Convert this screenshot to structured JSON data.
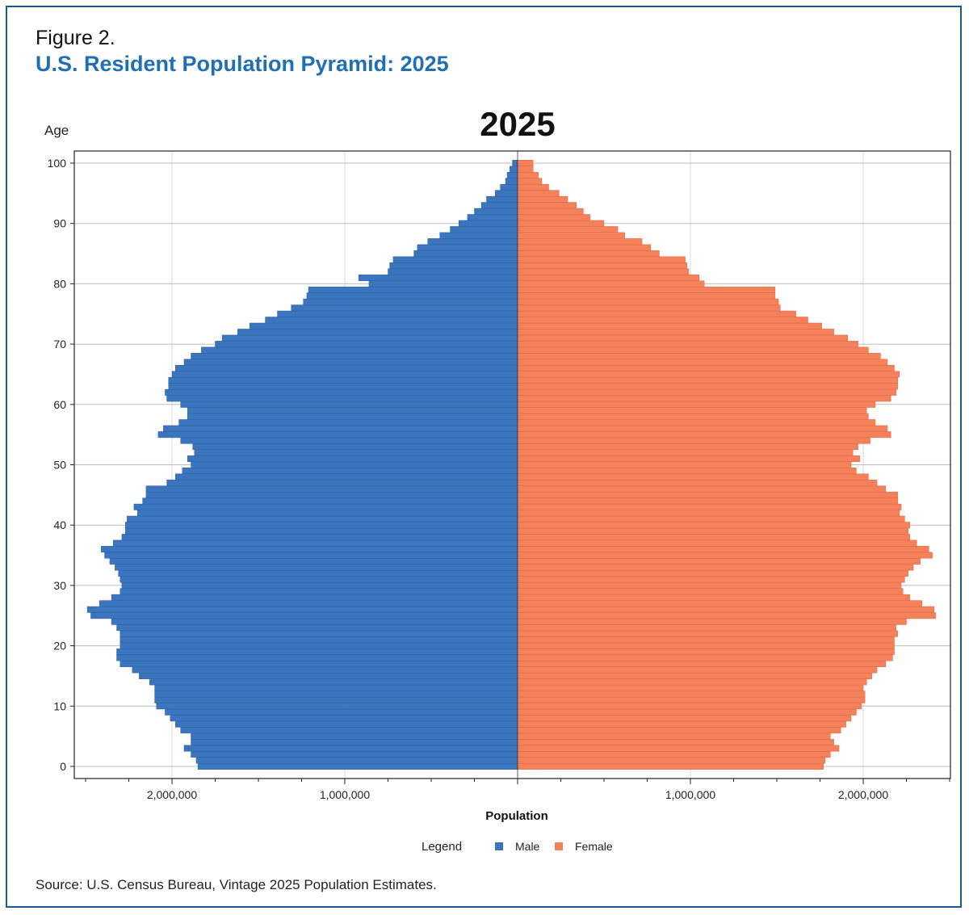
{
  "figure": {
    "label": "Figure 2.",
    "title": "U.S. Resident Population Pyramid: 2025",
    "source": "Source: U.S. Census Bureau, Vintage 2025 Population Estimates."
  },
  "colors": {
    "male": "#3a75bd",
    "female": "#f4815a",
    "frame": "#1f5a8e",
    "title": "#1f6fb2"
  },
  "chart_data": {
    "type": "bar",
    "orientation": "horizontal-pyramid",
    "title": "2025",
    "ylabel": "Age",
    "xlabel": "Population",
    "legend_title": "Legend",
    "legend_placement": "bottom-center",
    "grid": true,
    "xlim": [
      -2500000,
      2500000
    ],
    "ylim": [
      0,
      100
    ],
    "x_ticks": [
      -2000000,
      -1000000,
      1000000,
      2000000
    ],
    "x_tick_labels": [
      "2,000,000",
      "1,000,000",
      "1,000,000",
      "2,000,000"
    ],
    "y_ticks": [
      0,
      10,
      20,
      30,
      40,
      50,
      60,
      70,
      80,
      90,
      100
    ],
    "y_tick_labels": [
      "0",
      "10",
      "20",
      "30",
      "40",
      "50",
      "60",
      "70",
      "80",
      "90",
      "100"
    ],
    "ages": [
      0,
      1,
      2,
      3,
      4,
      5,
      6,
      7,
      8,
      9,
      10,
      11,
      12,
      13,
      14,
      15,
      16,
      17,
      18,
      19,
      20,
      21,
      22,
      23,
      24,
      25,
      26,
      27,
      28,
      29,
      30,
      31,
      32,
      33,
      34,
      35,
      36,
      37,
      38,
      39,
      40,
      41,
      42,
      43,
      44,
      45,
      46,
      47,
      48,
      49,
      50,
      51,
      52,
      53,
      54,
      55,
      56,
      57,
      58,
      59,
      60,
      61,
      62,
      63,
      64,
      65,
      66,
      67,
      68,
      69,
      70,
      71,
      72,
      73,
      74,
      75,
      76,
      77,
      78,
      79,
      80,
      81,
      82,
      83,
      84,
      85,
      86,
      87,
      88,
      89,
      90,
      91,
      92,
      93,
      94,
      95,
      96,
      97,
      98,
      99,
      100
    ],
    "series": [
      {
        "name": "Male",
        "color": "#3a75bd",
        "values": [
          1850000,
          1860000,
          1890000,
          1930000,
          1890000,
          1890000,
          1950000,
          1980000,
          2010000,
          2040000,
          2090000,
          2100000,
          2100000,
          2100000,
          2130000,
          2190000,
          2230000,
          2300000,
          2320000,
          2320000,
          2300000,
          2300000,
          2300000,
          2320000,
          2350000,
          2470000,
          2490000,
          2420000,
          2350000,
          2300000,
          2290000,
          2300000,
          2310000,
          2330000,
          2360000,
          2390000,
          2410000,
          2340000,
          2290000,
          2270000,
          2270000,
          2260000,
          2200000,
          2220000,
          2170000,
          2150000,
          2150000,
          2030000,
          1980000,
          1940000,
          1890000,
          1910000,
          1870000,
          1880000,
          1950000,
          2080000,
          2050000,
          1960000,
          1910000,
          1910000,
          1950000,
          2030000,
          2040000,
          2020000,
          2020000,
          2000000,
          1980000,
          1930000,
          1890000,
          1830000,
          1750000,
          1710000,
          1620000,
          1550000,
          1460000,
          1390000,
          1310000,
          1240000,
          1220000,
          1210000,
          860000,
          920000,
          750000,
          740000,
          720000,
          600000,
          580000,
          520000,
          450000,
          390000,
          340000,
          290000,
          250000,
          210000,
          180000,
          130000,
          100000,
          70000,
          60000,
          45000,
          30000
        ]
      },
      {
        "name": "Female",
        "color": "#f4815a",
        "values": [
          1770000,
          1780000,
          1810000,
          1860000,
          1830000,
          1810000,
          1870000,
          1900000,
          1930000,
          1960000,
          1990000,
          2010000,
          2010000,
          2000000,
          2020000,
          2050000,
          2080000,
          2130000,
          2170000,
          2180000,
          2180000,
          2180000,
          2200000,
          2190000,
          2250000,
          2420000,
          2410000,
          2340000,
          2270000,
          2230000,
          2220000,
          2240000,
          2260000,
          2290000,
          2330000,
          2400000,
          2380000,
          2310000,
          2270000,
          2260000,
          2270000,
          2240000,
          2210000,
          2220000,
          2200000,
          2200000,
          2130000,
          2080000,
          2030000,
          1960000,
          1930000,
          1980000,
          1940000,
          1970000,
          2040000,
          2160000,
          2140000,
          2070000,
          2030000,
          2020000,
          2070000,
          2160000,
          2190000,
          2200000,
          2200000,
          2210000,
          2180000,
          2140000,
          2100000,
          2030000,
          1970000,
          1910000,
          1830000,
          1760000,
          1680000,
          1610000,
          1520000,
          1510000,
          1490000,
          1490000,
          1080000,
          1050000,
          990000,
          980000,
          970000,
          820000,
          770000,
          720000,
          620000,
          580000,
          500000,
          420000,
          380000,
          340000,
          290000,
          240000,
          180000,
          140000,
          120000,
          90000,
          90000
        ]
      }
    ]
  }
}
